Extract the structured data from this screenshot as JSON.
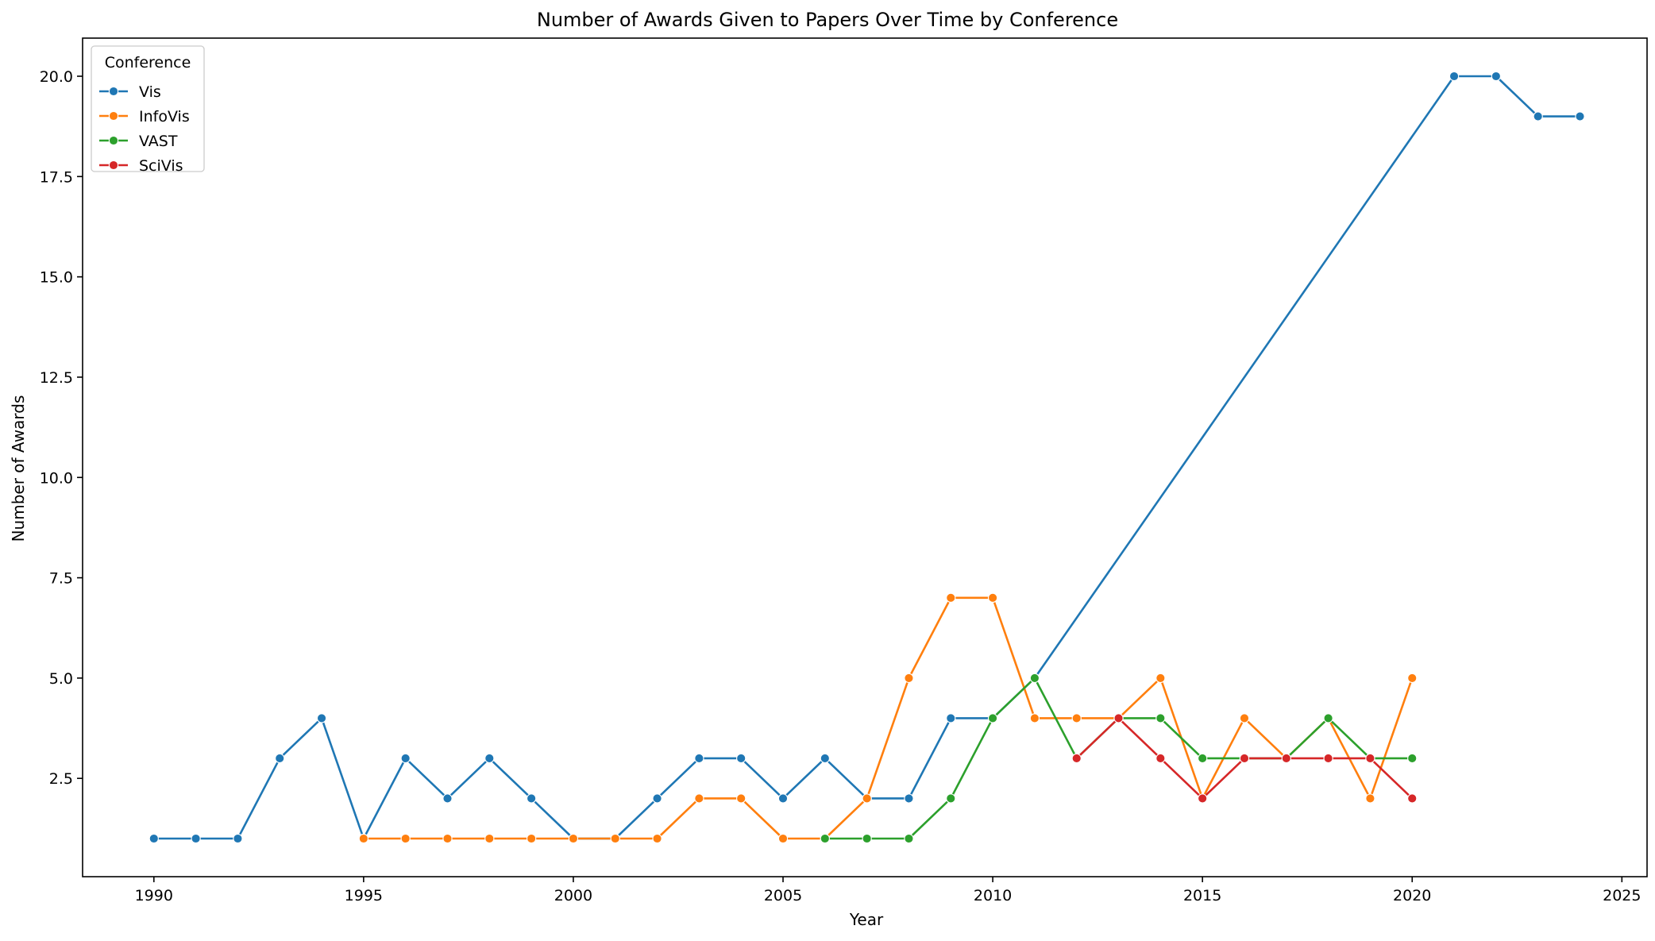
{
  "chart_data": {
    "type": "line",
    "title": "Number of Awards Given to Papers Over Time by Conference",
    "xlabel": "Year",
    "ylabel": "Number of Awards",
    "xlim": [
      1988.3,
      2025.6
    ],
    "ylim": [
      0.05,
      20.95
    ],
    "xticks": [
      1990,
      1995,
      2000,
      2005,
      2010,
      2015,
      2020,
      2025
    ],
    "yticks": [
      2.5,
      5.0,
      7.5,
      10.0,
      12.5,
      15.0,
      17.5,
      20.0
    ],
    "ytick_labels": [
      "2.5",
      "5.0",
      "7.5",
      "10.0",
      "12.5",
      "15.0",
      "17.5",
      "20.0"
    ],
    "grid": false,
    "legend": {
      "title": "Conference",
      "position": "top-left"
    },
    "series": [
      {
        "name": "Vis",
        "color": "#1f77b4",
        "points": [
          [
            1990,
            1
          ],
          [
            1991,
            1
          ],
          [
            1992,
            1
          ],
          [
            1993,
            3
          ],
          [
            1994,
            4
          ],
          [
            1995,
            1
          ],
          [
            1996,
            3
          ],
          [
            1997,
            2
          ],
          [
            1998,
            3
          ],
          [
            1999,
            2
          ],
          [
            2000,
            1
          ],
          [
            2001,
            1
          ],
          [
            2002,
            2
          ],
          [
            2003,
            3
          ],
          [
            2004,
            3
          ],
          [
            2005,
            2
          ],
          [
            2006,
            3
          ],
          [
            2007,
            2
          ],
          [
            2008,
            2
          ],
          [
            2009,
            4
          ],
          [
            2010,
            4
          ],
          [
            2011,
            5
          ],
          [
            2021,
            20
          ],
          [
            2022,
            20
          ],
          [
            2023,
            19
          ],
          [
            2024,
            19
          ]
        ]
      },
      {
        "name": "InfoVis",
        "color": "#ff7f0e",
        "points": [
          [
            1995,
            1
          ],
          [
            1996,
            1
          ],
          [
            1997,
            1
          ],
          [
            1998,
            1
          ],
          [
            1999,
            1
          ],
          [
            2000,
            1
          ],
          [
            2001,
            1
          ],
          [
            2002,
            1
          ],
          [
            2003,
            2
          ],
          [
            2004,
            2
          ],
          [
            2005,
            1
          ],
          [
            2006,
            1
          ],
          [
            2007,
            2
          ],
          [
            2008,
            5
          ],
          [
            2009,
            7
          ],
          [
            2010,
            7
          ],
          [
            2011,
            4
          ],
          [
            2012,
            4
          ],
          [
            2013,
            4
          ],
          [
            2014,
            5
          ],
          [
            2015,
            2
          ],
          [
            2016,
            4
          ],
          [
            2017,
            3
          ],
          [
            2018,
            4
          ],
          [
            2019,
            2
          ],
          [
            2020,
            5
          ]
        ]
      },
      {
        "name": "VAST",
        "color": "#2ca02c",
        "points": [
          [
            2006,
            1
          ],
          [
            2007,
            1
          ],
          [
            2008,
            1
          ],
          [
            2009,
            2
          ],
          [
            2010,
            4
          ],
          [
            2011,
            5
          ],
          [
            2012,
            3
          ],
          [
            2013,
            4
          ],
          [
            2014,
            4
          ],
          [
            2015,
            3
          ],
          [
            2016,
            3
          ],
          [
            2017,
            3
          ],
          [
            2018,
            4
          ],
          [
            2019,
            3
          ],
          [
            2020,
            3
          ]
        ]
      },
      {
        "name": "SciVis",
        "color": "#d62728",
        "points": [
          [
            2012,
            3
          ],
          [
            2013,
            4
          ],
          [
            2014,
            3
          ],
          [
            2015,
            2
          ],
          [
            2016,
            3
          ],
          [
            2017,
            3
          ],
          [
            2018,
            3
          ],
          [
            2019,
            3
          ],
          [
            2020,
            2
          ]
        ]
      }
    ]
  }
}
